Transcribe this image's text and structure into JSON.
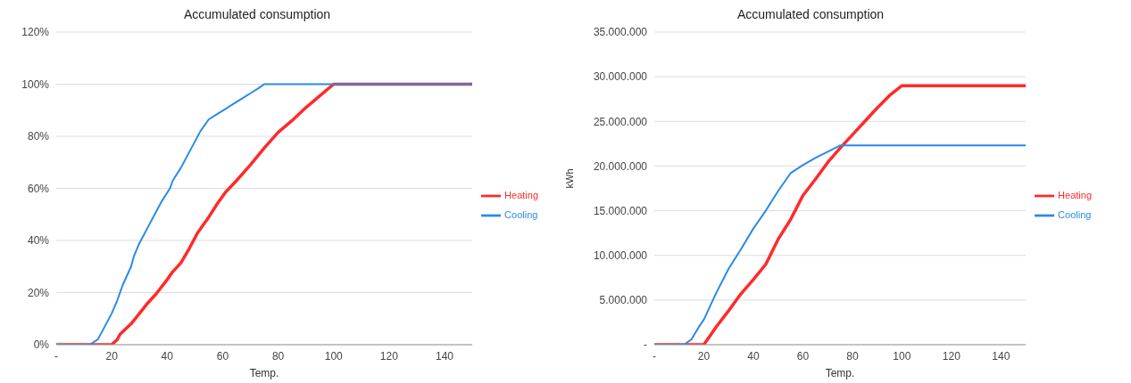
{
  "chart_data": [
    {
      "type": "line",
      "title": "Accumulated consumption",
      "xlabel": "Temp.",
      "xlim": [
        0,
        150
      ],
      "xticks": [
        {
          "value": 0,
          "label": "-"
        },
        20,
        40,
        60,
        80,
        100,
        120,
        140
      ],
      "ylim": [
        0,
        120
      ],
      "yticks": [
        {
          "value": 0,
          "label": "0%"
        },
        {
          "value": 20,
          "label": "20%"
        },
        {
          "value": 40,
          "label": "40%"
        },
        {
          "value": 60,
          "label": "60%"
        },
        {
          "value": 80,
          "label": "80%"
        },
        {
          "value": 100,
          "label": "100%"
        },
        {
          "value": 120,
          "label": "120%"
        }
      ],
      "grid": "y",
      "legend": "right",
      "marker": "none",
      "line_style": "solid",
      "series": [
        {
          "name": "Heating",
          "color": "#ff2a2a",
          "x": [
            0,
            20,
            22,
            23,
            27,
            30,
            33,
            36,
            40,
            42,
            45,
            48,
            51,
            55,
            58,
            61,
            65,
            70,
            75,
            80,
            85,
            90,
            95,
            100,
            150
          ],
          "values": [
            0,
            0,
            2,
            4,
            8,
            12,
            16,
            19.5,
            25,
            28,
            31.5,
            37,
            43,
            49,
            54,
            58.5,
            63,
            69,
            75.5,
            81.5,
            86,
            91,
            95.5,
            100,
            100
          ]
        },
        {
          "name": "Cooling",
          "color": "#2a8ae6",
          "x": [
            0,
            12,
            15,
            18,
            20,
            22,
            24,
            27,
            28,
            30,
            33,
            36,
            38,
            41,
            42,
            45,
            47,
            50,
            52,
            55,
            58,
            61,
            64,
            67,
            70,
            73,
            75,
            150
          ],
          "values": [
            0,
            0,
            2,
            8,
            12,
            17,
            23,
            30,
            34,
            39,
            45,
            51,
            55,
            60,
            63,
            68,
            72,
            78,
            82,
            86.5,
            88.5,
            90.5,
            92.5,
            94.5,
            96.5,
            98.5,
            100,
            100
          ]
        }
      ]
    },
    {
      "type": "line",
      "title": "Accumulated consumption",
      "xlabel": "Temp.",
      "ylabel": "kWh",
      "xlim": [
        0,
        150
      ],
      "xticks": [
        {
          "value": 0,
          "label": "-"
        },
        20,
        40,
        60,
        80,
        100,
        120,
        140
      ],
      "ylim": [
        0,
        35000000
      ],
      "yticks": [
        {
          "value": 0,
          "label": "-"
        },
        {
          "value": 5000000,
          "label": "5.000.000"
        },
        {
          "value": 10000000,
          "label": "10.000.000"
        },
        {
          "value": 15000000,
          "label": "15.000.000"
        },
        {
          "value": 20000000,
          "label": "20.000.000"
        },
        {
          "value": 25000000,
          "label": "25.000.000"
        },
        {
          "value": 30000000,
          "label": "30.000.000"
        },
        {
          "value": 35000000,
          "label": "35.000.000"
        }
      ],
      "grid": "y",
      "legend": "right",
      "marker": "none",
      "line_style": "solid",
      "series": [
        {
          "name": "Heating",
          "color": "#ff2a2a",
          "x": [
            0,
            20,
            25,
            30,
            35,
            40,
            45,
            50,
            55,
            60,
            65,
            70,
            75,
            80,
            85,
            90,
            95,
            100,
            150
          ],
          "values": [
            0,
            0,
            2000000,
            3800000,
            5700000,
            7300000,
            9000000,
            11800000,
            14000000,
            16700000,
            18500000,
            20400000,
            22000000,
            23500000,
            25000000,
            26500000,
            27900000,
            29000000,
            29000000
          ]
        },
        {
          "name": "Cooling",
          "color": "#2a8ae6",
          "x": [
            0,
            12,
            15,
            18,
            20,
            22,
            25,
            30,
            35,
            40,
            45,
            50,
            55,
            60,
            65,
            70,
            75,
            150
          ],
          "values": [
            0,
            0,
            600000,
            2000000,
            2800000,
            4000000,
            5800000,
            8500000,
            10700000,
            13000000,
            15000000,
            17200000,
            19200000,
            20100000,
            20900000,
            21600000,
            22300000,
            22300000
          ]
        }
      ]
    }
  ]
}
